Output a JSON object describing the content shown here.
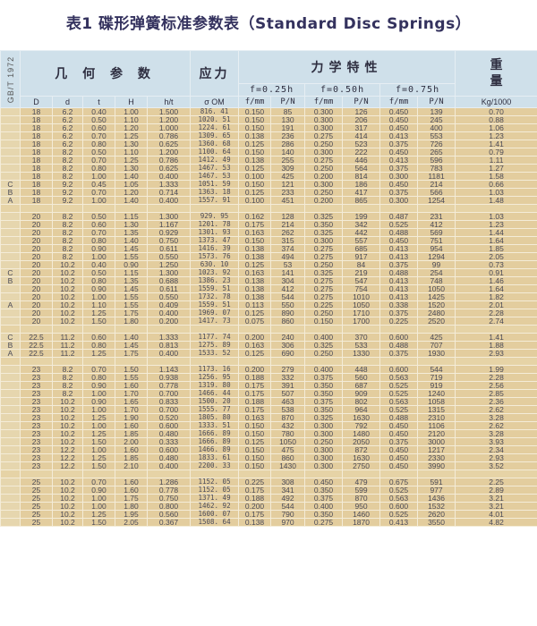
{
  "title": "表1  碟形弹簧标准参数表（Standard Disc Springs）",
  "header": {
    "standard": "GB/T 1972",
    "geometry": "几 何 参 数",
    "stress": "应力",
    "mechanics": "力学特性",
    "weight": "重量",
    "deflections": [
      "f=0.25h",
      "f=0.50h",
      "f=0.75h"
    ],
    "columns": [
      "D",
      "d",
      "t",
      "H",
      "h/t",
      "σ OM",
      "f/mm",
      "P/N",
      "f/mm",
      "P/N",
      "f/mm",
      "P/N",
      "Kg/1000"
    ]
  },
  "colors": {
    "header_bg": "#cfe0ea",
    "row_bg": "#e3cd9e",
    "title": "#34325e"
  },
  "groups": [
    {
      "rows": [
        [
          "",
          "18",
          "6.2",
          "0.40",
          "1.00",
          "1.500",
          "816. 41",
          "0.150",
          "85",
          "0.300",
          "126",
          "0.450",
          "139",
          "0.70"
        ],
        [
          "",
          "18",
          "6.2",
          "0.50",
          "1.10",
          "1.200",
          "1020. 51",
          "0.150",
          "130",
          "0.300",
          "206",
          "0.450",
          "245",
          "0.88"
        ],
        [
          "",
          "18",
          "6.2",
          "0.60",
          "1.20",
          "1.000",
          "1224. 61",
          "0.150",
          "191",
          "0.300",
          "317",
          "0.450",
          "400",
          "1.06"
        ],
        [
          "",
          "18",
          "6.2",
          "0.70",
          "1.25",
          "0.786",
          "1309. 65",
          "0.138",
          "236",
          "0.275",
          "414",
          "0.413",
          "553",
          "1.23"
        ],
        [
          "",
          "18",
          "6.2",
          "0.80",
          "1.30",
          "0.625",
          "1360. 68",
          "0.125",
          "286",
          "0.250",
          "523",
          "0.375",
          "726",
          "1.41"
        ],
        [
          "",
          "18",
          "8.2",
          "0.50",
          "1.10",
          "1.200",
          "1100. 64",
          "0.150",
          "140",
          "0.300",
          "222",
          "0.450",
          "265",
          "0.79"
        ],
        [
          "",
          "18",
          "8.2",
          "0.70",
          "1.25",
          "0.786",
          "1412. 49",
          "0.138",
          "255",
          "0.275",
          "446",
          "0.413",
          "596",
          "1.11"
        ],
        [
          "",
          "18",
          "8.2",
          "0.80",
          "1.30",
          "0.625",
          "1467. 53",
          "0.125",
          "309",
          "0.250",
          "564",
          "0.375",
          "783",
          "1.27"
        ],
        [
          "",
          "18",
          "8.2",
          "1.00",
          "1.40",
          "0.400",
          "1467. 53",
          "0.100",
          "425",
          "0.200",
          "814",
          "0.300",
          "1181",
          "1.58"
        ],
        [
          "C",
          "18",
          "9.2",
          "0.45",
          "1.05",
          "1.333",
          "1051. 59",
          "0.150",
          "121",
          "0.300",
          "186",
          "0.450",
          "214",
          "0.66"
        ],
        [
          "B",
          "18",
          "9.2",
          "0.70",
          "1.20",
          "0.714",
          "1363. 18",
          "0.125",
          "233",
          "0.250",
          "417",
          "0.375",
          "566",
          "1.03"
        ],
        [
          "A",
          "18",
          "9.2",
          "1.00",
          "1.40",
          "0.400",
          "1557. 91",
          "0.100",
          "451",
          "0.200",
          "865",
          "0.300",
          "1254",
          "1.48"
        ]
      ]
    },
    {
      "rows": [
        [
          "",
          "20",
          "8.2",
          "0.50",
          "1.15",
          "1.300",
          "929. 95",
          "0.162",
          "128",
          "0.325",
          "199",
          "0.487",
          "231",
          "1.03"
        ],
        [
          "",
          "20",
          "8.2",
          "0.60",
          "1.30",
          "1.167",
          "1201. 78",
          "0.175",
          "214",
          "0.350",
          "342",
          "0.525",
          "412",
          "1.23"
        ],
        [
          "",
          "20",
          "8.2",
          "0.70",
          "1.35",
          "0.929",
          "1301. 93",
          "0.163",
          "262",
          "0.325",
          "442",
          "0.488",
          "569",
          "1.44"
        ],
        [
          "",
          "20",
          "8.2",
          "0.80",
          "1.40",
          "0.750",
          "1373. 47",
          "0.150",
          "315",
          "0.300",
          "557",
          "0.450",
          "751",
          "1.64"
        ],
        [
          "",
          "20",
          "8.2",
          "0.90",
          "1.45",
          "0.611",
          "1416. 39",
          "0.138",
          "374",
          "0.275",
          "685",
          "0.413",
          "954",
          "1.85"
        ],
        [
          "",
          "20",
          "8.2",
          "1.00",
          "1.55",
          "0.550",
          "1573. 76",
          "0.138",
          "494",
          "0.275",
          "917",
          "0.413",
          "1294",
          "2.05"
        ],
        [
          "",
          "20",
          "10.2",
          "0.40",
          "0.90",
          "1.250",
          "630. 10",
          "0.125",
          "53",
          "0.250",
          "84",
          "0.375",
          "99",
          "0.73"
        ],
        [
          "C",
          "20",
          "10.2",
          "0.50",
          "1.15",
          "1.300",
          "1023. 92",
          "0.163",
          "141",
          "0.325",
          "219",
          "0.488",
          "254",
          "0.91"
        ],
        [
          "B",
          "20",
          "10.2",
          "0.80",
          "1.35",
          "0.688",
          "1386. 23",
          "0.138",
          "304",
          "0.275",
          "547",
          "0.413",
          "748",
          "1.46"
        ],
        [
          "",
          "20",
          "10.2",
          "0.90",
          "1.45",
          "0.611",
          "1559. 51",
          "0.138",
          "412",
          "0.275",
          "754",
          "0.413",
          "1050",
          "1.64"
        ],
        [
          "",
          "20",
          "10.2",
          "1.00",
          "1.55",
          "0.550",
          "1732. 78",
          "0.138",
          "544",
          "0.275",
          "1010",
          "0.413",
          "1425",
          "1.82"
        ],
        [
          "A",
          "20",
          "10.2",
          "1.10",
          "1.55",
          "0.409",
          "1559. 51",
          "0.113",
          "550",
          "0.225",
          "1050",
          "0.338",
          "1520",
          "2.01"
        ],
        [
          "",
          "20",
          "10.2",
          "1.25",
          "1.75",
          "0.400",
          "1969. 07",
          "0.125",
          "890",
          "0.250",
          "1710",
          "0.375",
          "2480",
          "2.28"
        ],
        [
          "",
          "20",
          "10.2",
          "1.50",
          "1.80",
          "0.200",
          "1417. 73",
          "0.075",
          "860",
          "0.150",
          "1700",
          "0.225",
          "2520",
          "2.74"
        ]
      ]
    },
    {
      "rows": [
        [
          "C",
          "22.5",
          "11.2",
          "0.60",
          "1.40",
          "1.333",
          "1177. 74",
          "0.200",
          "240",
          "0.400",
          "370",
          "0.600",
          "425",
          "1.41"
        ],
        [
          "B",
          "22.5",
          "11.2",
          "0.80",
          "1.45",
          "0.813",
          "1275. 89",
          "0.163",
          "306",
          "0.325",
          "533",
          "0.488",
          "707",
          "1.88"
        ],
        [
          "A",
          "22.5",
          "11.2",
          "1.25",
          "1.75",
          "0.400",
          "1533. 52",
          "0.125",
          "690",
          "0.250",
          "1330",
          "0.375",
          "1930",
          "2.93"
        ]
      ]
    },
    {
      "rows": [
        [
          "",
          "23",
          "8.2",
          "0.70",
          "1.50",
          "1.143",
          "1173. 16",
          "0.200",
          "279",
          "0.400",
          "448",
          "0.600",
          "544",
          "1.99"
        ],
        [
          "",
          "23",
          "8.2",
          "0.80",
          "1.55",
          "0.938",
          "1256. 95",
          "0.188",
          "332",
          "0.375",
          "560",
          "0.563",
          "719",
          "2.28"
        ],
        [
          "",
          "23",
          "8.2",
          "0.90",
          "1.60",
          "0.778",
          "1319. 80",
          "0.175",
          "391",
          "0.350",
          "687",
          "0.525",
          "919",
          "2.56"
        ],
        [
          "",
          "23",
          "8.2",
          "1.00",
          "1.70",
          "0.700",
          "1466. 44",
          "0.175",
          "507",
          "0.350",
          "909",
          "0.525",
          "1240",
          "2.85"
        ],
        [
          "",
          "23",
          "10.2",
          "0.90",
          "1.65",
          "0.833",
          "1500. 20",
          "0.188",
          "463",
          "0.375",
          "802",
          "0.563",
          "1058",
          "2.36"
        ],
        [
          "",
          "23",
          "10.2",
          "1.00",
          "1.70",
          "0.700",
          "1555. 77",
          "0.175",
          "538",
          "0.350",
          "964",
          "0.525",
          "1315",
          "2.62"
        ],
        [
          "",
          "23",
          "10.2",
          "1.25",
          "1.90",
          "0.520",
          "1805. 80",
          "0.163",
          "870",
          "0.325",
          "1630",
          "0.488",
          "2310",
          "3.28"
        ],
        [
          "",
          "23",
          "10.2",
          "1.00",
          "1.60",
          "0.600",
          "1333. 51",
          "0.150",
          "432",
          "0.300",
          "792",
          "0.450",
          "1106",
          "2.62"
        ],
        [
          "",
          "23",
          "10.2",
          "1.25",
          "1.85",
          "0.480",
          "1666. 89",
          "0.150",
          "780",
          "0.300",
          "1480",
          "0.450",
          "2120",
          "3.28"
        ],
        [
          "",
          "23",
          "10.2",
          "1.50",
          "2.00",
          "0.333",
          "1666. 89",
          "0.125",
          "1050",
          "0.250",
          "2050",
          "0.375",
          "3000",
          "3.93"
        ],
        [
          "",
          "23",
          "12.2",
          "1.00",
          "1.60",
          "0.600",
          "1466. 89",
          "0.150",
          "475",
          "0.300",
          "872",
          "0.450",
          "1217",
          "2.34"
        ],
        [
          "",
          "23",
          "12.2",
          "1.25",
          "1.85",
          "0.480",
          "1833. 61",
          "0.150",
          "860",
          "0.300",
          "1630",
          "0.450",
          "2330",
          "2.93"
        ],
        [
          "",
          "23",
          "12.2",
          "1.50",
          "2.10",
          "0.400",
          "2200. 33",
          "0.150",
          "1430",
          "0.300",
          "2750",
          "0.450",
          "3990",
          "3.52"
        ]
      ]
    },
    {
      "rows": [
        [
          "",
          "25",
          "10.2",
          "0.70",
          "1.60",
          "1.286",
          "1152. 05",
          "0.225",
          "308",
          "0.450",
          "479",
          "0.675",
          "591",
          "2.25"
        ],
        [
          "",
          "25",
          "10.2",
          "0.90",
          "1.60",
          "0.778",
          "1152. 05",
          "0.175",
          "341",
          "0.350",
          "599",
          "0.525",
          "977",
          "2.89"
        ],
        [
          "",
          "25",
          "10.2",
          "1.00",
          "1.75",
          "0.750",
          "1371. 49",
          "0.188",
          "492",
          "0.375",
          "870",
          "0.563",
          "1436",
          "3.21"
        ],
        [
          "",
          "25",
          "10.2",
          "1.00",
          "1.80",
          "0.800",
          "1462. 92",
          "0.200",
          "544",
          "0.400",
          "950",
          "0.600",
          "1532",
          "3.21"
        ],
        [
          "",
          "25",
          "10.2",
          "1.25",
          "1.95",
          "0.560",
          "1600. 07",
          "0.175",
          "790",
          "0.350",
          "1460",
          "0.525",
          "2620",
          "4.01"
        ],
        [
          "",
          "25",
          "10.2",
          "1.50",
          "2.05",
          "0.367",
          "1508. 64",
          "0.138",
          "970",
          "0.275",
          "1870",
          "0.413",
          "3550",
          "4.82"
        ]
      ]
    }
  ]
}
